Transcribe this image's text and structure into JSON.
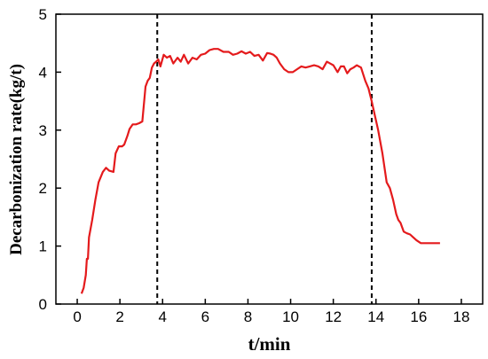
{
  "chart_data": {
    "type": "line",
    "xlabel": "t/min",
    "ylabel": "Decarbonization rate(kg/t)",
    "xlim": [
      -1,
      19
    ],
    "ylim": [
      0,
      5
    ],
    "xticks": [
      0,
      2,
      4,
      6,
      8,
      10,
      12,
      14,
      16,
      18
    ],
    "yticks": [
      0,
      1,
      2,
      3,
      4,
      5
    ],
    "grid": false,
    "vlines": [
      3.75,
      13.8
    ],
    "series": [
      {
        "color": "#e41a1c",
        "x": [
          0.2,
          0.3,
          0.4,
          0.45,
          0.5,
          0.55,
          0.7,
          0.85,
          1.0,
          1.2,
          1.35,
          1.5,
          1.7,
          1.8,
          1.95,
          2.1,
          2.2,
          2.35,
          2.45,
          2.6,
          2.75,
          2.9,
          3.05,
          3.2,
          3.3,
          3.4,
          3.5,
          3.6,
          3.7,
          3.8,
          3.9,
          4.05,
          4.2,
          4.35,
          4.5,
          4.7,
          4.85,
          5.0,
          5.2,
          5.4,
          5.6,
          5.8,
          6.0,
          6.2,
          6.4,
          6.6,
          6.85,
          7.1,
          7.3,
          7.5,
          7.7,
          7.9,
          8.1,
          8.3,
          8.5,
          8.7,
          8.9,
          9.05,
          9.2,
          9.35,
          9.5,
          9.7,
          9.9,
          10.1,
          10.3,
          10.5,
          10.7,
          10.9,
          11.1,
          11.3,
          11.5,
          11.7,
          11.85,
          12.0,
          12.2,
          12.35,
          12.5,
          12.65,
          12.8,
          12.95,
          13.1,
          13.3,
          13.5,
          13.65,
          13.8,
          13.95,
          14.1,
          14.3,
          14.5,
          14.65,
          14.8,
          14.95,
          15.05,
          15.15,
          15.3,
          15.45,
          15.6,
          15.75,
          15.9,
          16.1,
          16.3,
          16.5,
          16.7,
          16.9,
          17.0
        ],
        "y": [
          0.18,
          0.28,
          0.5,
          0.78,
          0.78,
          1.15,
          1.45,
          1.8,
          2.1,
          2.28,
          2.35,
          2.3,
          2.28,
          2.6,
          2.72,
          2.72,
          2.75,
          2.9,
          3.02,
          3.1,
          3.1,
          3.12,
          3.15,
          3.75,
          3.85,
          3.9,
          4.08,
          4.15,
          4.18,
          4.22,
          4.1,
          4.3,
          4.25,
          4.28,
          4.15,
          4.25,
          4.18,
          4.3,
          4.15,
          4.25,
          4.22,
          4.3,
          4.32,
          4.38,
          4.4,
          4.4,
          4.35,
          4.35,
          4.3,
          4.32,
          4.36,
          4.32,
          4.35,
          4.28,
          4.3,
          4.2,
          4.33,
          4.32,
          4.3,
          4.25,
          4.15,
          4.05,
          4.0,
          4.0,
          4.05,
          4.1,
          4.08,
          4.1,
          4.12,
          4.1,
          4.05,
          4.18,
          4.15,
          4.12,
          4.0,
          4.1,
          4.1,
          3.98,
          4.05,
          4.08,
          4.12,
          4.08,
          3.85,
          3.72,
          3.5,
          3.25,
          3.0,
          2.6,
          2.1,
          2.0,
          1.8,
          1.55,
          1.45,
          1.4,
          1.25,
          1.22,
          1.2,
          1.15,
          1.1,
          1.05,
          1.05,
          1.05,
          1.05,
          1.05,
          1.05
        ]
      }
    ]
  }
}
